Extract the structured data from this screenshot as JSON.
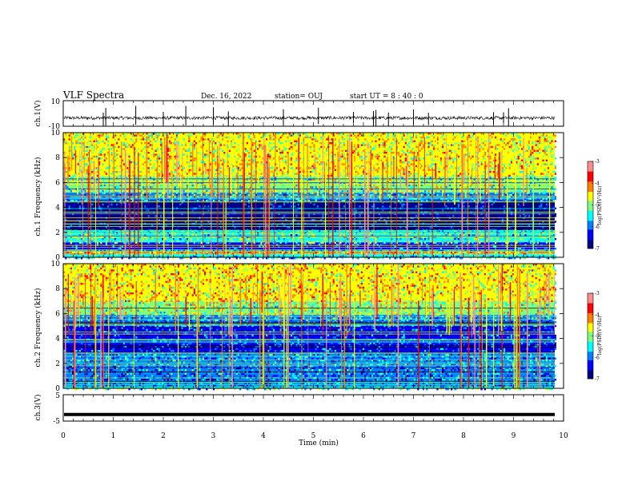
{
  "header": {
    "title": "VLF Spectra",
    "date": "Dec. 16, 2022",
    "station": "station= OUJ",
    "start": "start  UT  =   8  : 40 : 0"
  },
  "colors": {
    "colormap": [
      "#00007f",
      "#0000ff",
      "#007fff",
      "#00ffff",
      "#7fff7f",
      "#ffff00",
      "#ff7f00",
      "#ff0000",
      "#ff8c8c",
      "#ffffff"
    ]
  },
  "chart_data": [
    {
      "type": "line",
      "name": "ch1-waveform",
      "ylabel": "ch.1(V)",
      "xlim": [
        0,
        10
      ],
      "ylim": [
        -10,
        10
      ],
      "yticks": [
        "10",
        "-10"
      ],
      "baseline_v": -3.5,
      "spikes_min": [
        0.8,
        0.85,
        1.45,
        2.0,
        2.45,
        3.0,
        3.3,
        4.4,
        5.1,
        5.8,
        6.2,
        6.25,
        6.5,
        7.0,
        7.3,
        8.6,
        8.8,
        8.9
      ]
    },
    {
      "type": "heatmap",
      "name": "ch1-spectrogram",
      "ylabel": "ch.1 Frequency (kHz)",
      "xlim": [
        0,
        9.85
      ],
      "ylim": [
        0,
        10
      ],
      "yticks": [
        "0",
        "2",
        "4",
        "6",
        "8",
        "10"
      ],
      "colorbar": {
        "label": "log(PSD)(V²/Hz)",
        "range": [
          -7,
          -3
        ],
        "ticks": [
          "-3",
          "-4",
          "-5",
          "-6",
          "-7"
        ]
      },
      "bands": [
        {
          "f": [
            0,
            0.3
          ],
          "level": -5.6
        },
        {
          "f": [
            0.3,
            0.6
          ],
          "level": -4.3
        },
        {
          "f": [
            0.6,
            1.2
          ],
          "level": -6.3
        },
        {
          "f": [
            1.2,
            2.2
          ],
          "level": -5.3
        },
        {
          "f": [
            2.2,
            4.6
          ],
          "level": -6.6
        },
        {
          "f": [
            4.6,
            5.2
          ],
          "level": -5.8
        },
        {
          "f": [
            5.2,
            6.5
          ],
          "level": -5.1
        },
        {
          "f": [
            6.5,
            10
          ],
          "level": -4.6
        }
      ]
    },
    {
      "type": "heatmap",
      "name": "ch2-spectrogram",
      "ylabel": "ch.2 Frequency (kHz)",
      "xlim": [
        0,
        9.85
      ],
      "ylim": [
        0,
        10
      ],
      "yticks": [
        "0",
        "2",
        "4",
        "6",
        "8",
        "10"
      ],
      "colorbar": {
        "label": "log(PSD)(V²/Hz)",
        "range": [
          -7,
          -3
        ],
        "ticks": [
          "-3",
          "-4",
          "-5",
          "-6",
          "-7"
        ]
      },
      "bands": [
        {
          "f": [
            0,
            0.3
          ],
          "level": -5.4
        },
        {
          "f": [
            0.3,
            1.2
          ],
          "level": -6.1
        },
        {
          "f": [
            1.2,
            2.8
          ],
          "level": -5.9
        },
        {
          "f": [
            2.8,
            5.0
          ],
          "level": -6.3
        },
        {
          "f": [
            5.0,
            5.9
          ],
          "level": -5.7
        },
        {
          "f": [
            5.9,
            7.0
          ],
          "level": -4.9
        },
        {
          "f": [
            7.0,
            10
          ],
          "level": -4.5
        }
      ]
    },
    {
      "type": "line",
      "name": "ch3-waveform",
      "ylabel": "ch.3(V)",
      "xlabel": "Time  (min)",
      "xlim": [
        0,
        10
      ],
      "ylim": [
        -5,
        5
      ],
      "yticks": [
        "5",
        "-5"
      ],
      "xticks": [
        "0",
        "1",
        "2",
        "3",
        "4",
        "5",
        "6",
        "7",
        "8",
        "9",
        "10"
      ],
      "baseline_v": -2.5
    }
  ]
}
